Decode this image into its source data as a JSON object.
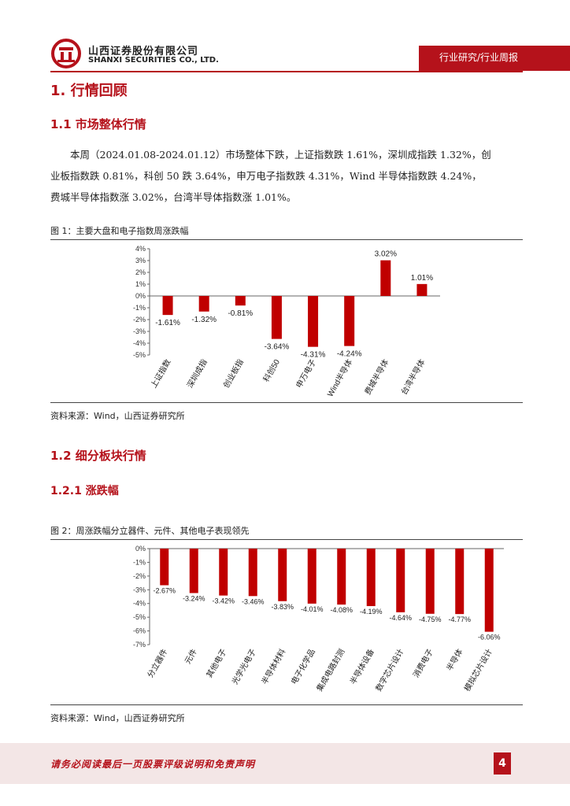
{
  "header": {
    "company_cn": "山西证券股份有限公司",
    "company_en": "SHANXI SECURITIES CO., LTD.",
    "tag": "行业研究/行业周报",
    "brand_color": "#b5121b"
  },
  "section": {
    "h1": "1.  行情回顾",
    "h2_1": "1.1  市场整体行情",
    "h2_2": "1.2  细分板块行情",
    "h3_1": "1.2.1  涨跌幅"
  },
  "paragraph": {
    "line1": "本周（2024.01.08-2024.01.12）市场整体下跌，上证指数跌 1.61%，深圳成指跌 1.32%，创",
    "line2": "业板指数跌 0.81%，科创 50 跌 3.64%，申万电子指数跌 4.31%，Wind 半导体指数跌 4.24%，",
    "line3": "费城半导体指数涨 3.02%，台湾半导体指数涨 1.01%。"
  },
  "figure1": {
    "title": "图 1：主要大盘和电子指数周涨跌幅",
    "source": "资料来源：Wind，山西证券研究所"
  },
  "figure2": {
    "title": "图 2：周涨跌幅分立器件、元件、其他电子表现领先",
    "source": "资料来源：Wind，山西证券研究所"
  },
  "footer": {
    "disclaimer": "请务必阅读最后一页股票评级说明和免责声明",
    "page": "4"
  },
  "chart_data": [
    {
      "type": "bar",
      "categories": [
        "上证指数",
        "深圳成指",
        "创业板指",
        "科创50",
        "申万电子",
        "Wind半导体",
        "费城半导体",
        "台湾半导体"
      ],
      "values": [
        -1.61,
        -1.32,
        -0.81,
        -3.64,
        -4.31,
        -4.24,
        3.02,
        1.01
      ],
      "labels": [
        "-1.61%",
        "-1.32%",
        "-0.81%",
        "-3.64%",
        "-4.31%",
        "-4.24%",
        "3.02%",
        "1.01%"
      ],
      "yticks": [
        "4%",
        "3%",
        "2%",
        "1%",
        "0%",
        "-1%",
        "-2%",
        "-3%",
        "-4%",
        "-5%"
      ],
      "ylim": [
        -5,
        4
      ],
      "color": "#c00000"
    },
    {
      "type": "bar",
      "categories": [
        "分立器件",
        "元件",
        "其他电子",
        "光学光电子",
        "半导体材料",
        "电子化学品",
        "集成电路封测",
        "半导体设备",
        "数字芯片设计",
        "消费电子",
        "半导体",
        "模拟芯片设计"
      ],
      "values": [
        -2.67,
        -3.24,
        -3.42,
        -3.46,
        -3.83,
        -4.01,
        -4.08,
        -4.19,
        -4.64,
        -4.75,
        -4.77,
        -6.06
      ],
      "labels": [
        "-2.67%",
        "-3.24%",
        "-3.42%",
        "-3.46%",
        "-3.83%",
        "-4.01%",
        "-4.08%",
        "-4.19%",
        "-4.64%",
        "-4.75%",
        "-4.77%",
        "-6.06%"
      ],
      "yticks": [
        "0%",
        "-1%",
        "-2%",
        "-3%",
        "-4%",
        "-5%",
        "-6%",
        "-7%"
      ],
      "ylim": [
        -7,
        0
      ],
      "color": "#c00000"
    }
  ]
}
